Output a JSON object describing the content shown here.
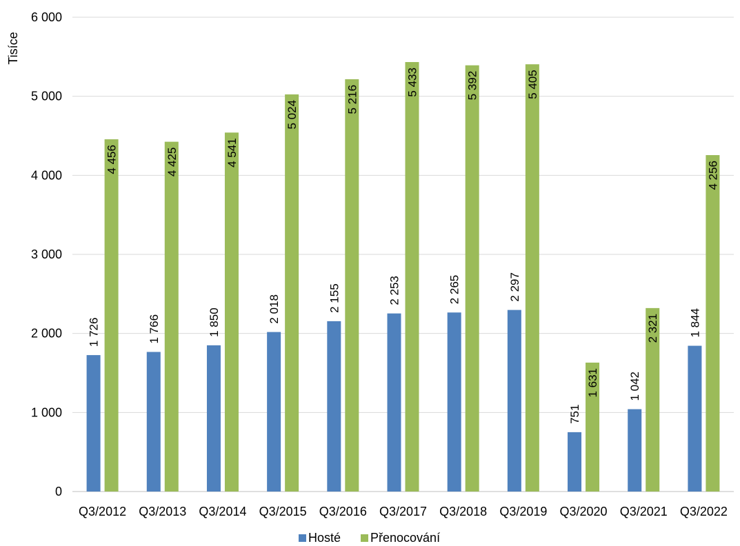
{
  "chart_data": {
    "type": "bar",
    "ylabel": "Tisíce",
    "ylim": [
      0,
      6000
    ],
    "yticks": [
      0,
      1000,
      2000,
      3000,
      4000,
      5000,
      6000
    ],
    "ytick_labels": [
      "0",
      "1 000",
      "2 000",
      "3 000",
      "4 000",
      "5 000",
      "6 000"
    ],
    "grid": true,
    "legend": "bottom",
    "categories": [
      "Q3/2012",
      "Q3/2013",
      "Q3/2014",
      "Q3/2015",
      "Q3/2016",
      "Q3/2017",
      "Q3/2018",
      "Q3/2019",
      "Q3/2020",
      "Q3/2021",
      "Q3/2022"
    ],
    "series": [
      {
        "name": "Hosté",
        "color": "#4f81bd",
        "values": [
          1726,
          1766,
          1850,
          2018,
          2155,
          2253,
          2265,
          2297,
          751,
          1042,
          1844
        ],
        "labels": [
          "1 726",
          "1 766",
          "1 850",
          "2 018",
          "2 155",
          "2 253",
          "2 265",
          "2 297",
          "751",
          "1 042",
          "1 844"
        ]
      },
      {
        "name": "Přenocování",
        "color": "#9bbb59",
        "values": [
          4456,
          4425,
          4541,
          5024,
          5216,
          5433,
          5392,
          5405,
          1631,
          2321,
          4256
        ],
        "labels": [
          "4 456",
          "4 425",
          "4 541",
          "5 024",
          "5 216",
          "5 433",
          "5 392",
          "5 405",
          "1 631",
          "2 321",
          "4 256"
        ]
      }
    ]
  }
}
